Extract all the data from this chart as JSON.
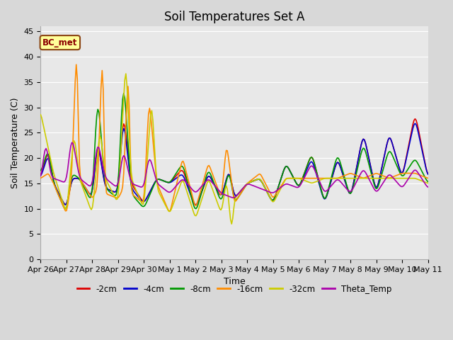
{
  "title": "Soil Temperatures Set A",
  "xlabel": "Time",
  "ylabel": "Soil Temperature (C)",
  "ylim": [
    0,
    46
  ],
  "yticks": [
    0,
    5,
    10,
    15,
    20,
    25,
    30,
    35,
    40,
    45
  ],
  "annotation": "BC_met",
  "series_names": [
    "-2cm",
    "-4cm",
    "-8cm",
    "-16cm",
    "-32cm",
    "Theta_Temp"
  ],
  "series_colors": [
    "#dd0000",
    "#0000cc",
    "#009900",
    "#ff8c00",
    "#cccc00",
    "#aa00aa"
  ],
  "series_widths": [
    1.2,
    1.2,
    1.2,
    1.2,
    1.2,
    1.2
  ],
  "xtick_labels": [
    "Apr 26",
    "Apr 27",
    "Apr 28",
    "Apr 29",
    "Apr 30",
    "May 1",
    "May 2",
    "May 3",
    "May 4",
    "May 5",
    "May 6",
    "May 7",
    "May 8",
    "May 9",
    "May 10",
    "May 11"
  ],
  "background_color": "#d8d8d8",
  "plot_bg_color": "#e8e8e8",
  "grid_color": "#ffffff",
  "title_fontsize": 12,
  "axis_fontsize": 9,
  "tick_fontsize": 8
}
